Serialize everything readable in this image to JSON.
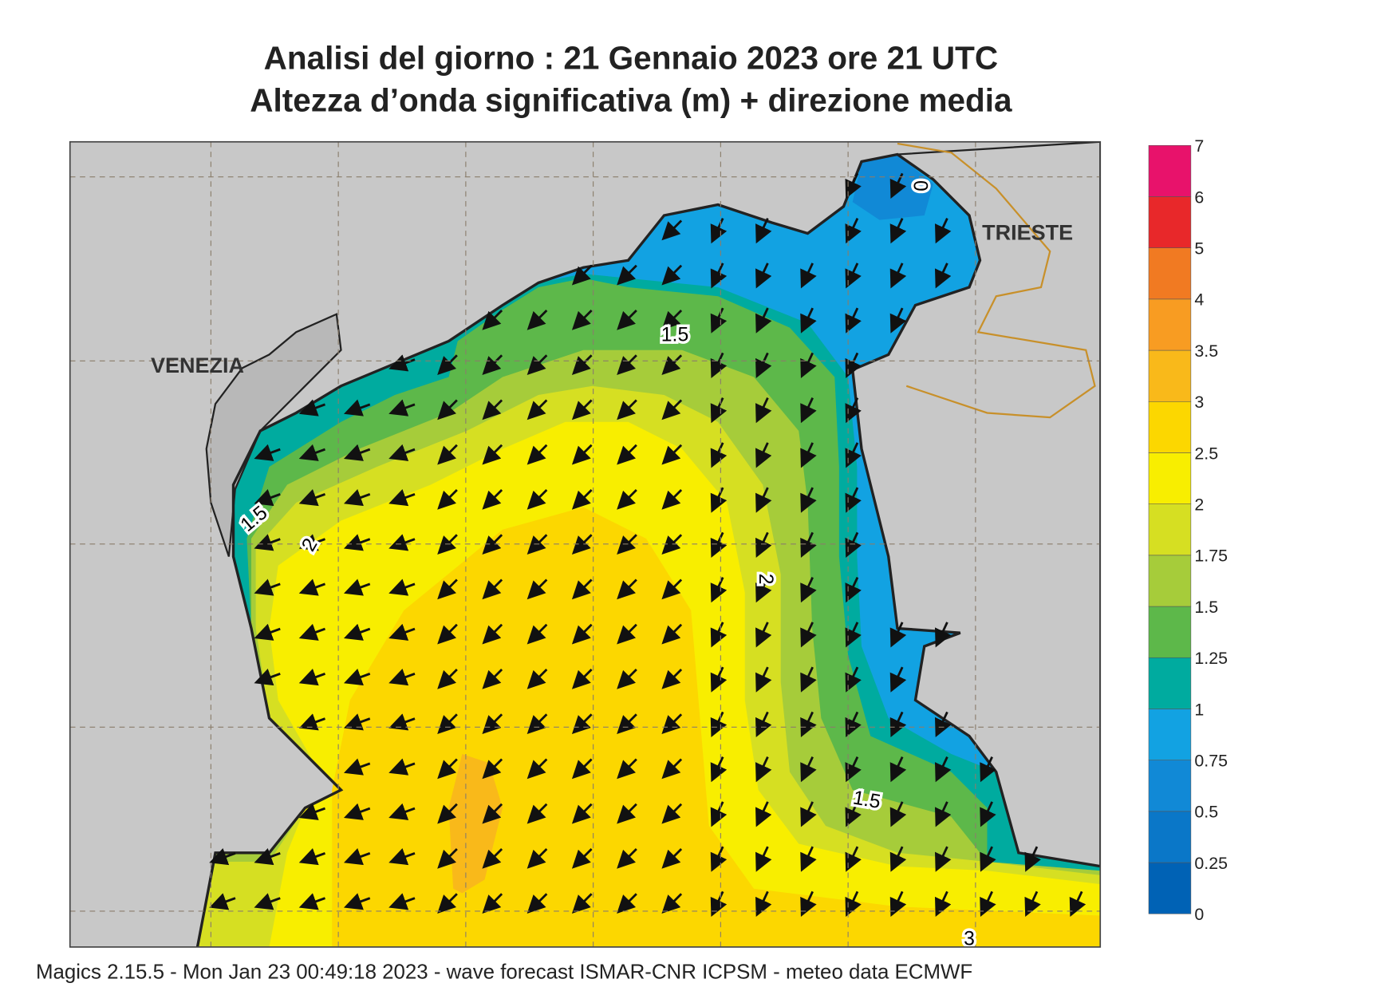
{
  "header": {
    "title_line1": "Analisi del giorno :  21  Gennaio  2023   ore 21 UTC",
    "title_line2": "Altezza d’onda significativa (m) + direzione media"
  },
  "legend": {
    "levels": [
      0,
      0.25,
      0.5,
      0.75,
      1,
      1.25,
      1.5,
      1.75,
      2,
      2.5,
      3,
      3.5,
      4,
      5,
      6,
      7
    ],
    "colors": [
      "#0062b5",
      "#0a77c8",
      "#1189d6",
      "#12a2e2",
      "#00ab9f",
      "#5db84a",
      "#a6cc3a",
      "#d6df22",
      "#f8ee00",
      "#fcd700",
      "#f9b91a",
      "#f89c22",
      "#f17a22",
      "#e8282a",
      "#e8126b"
    ]
  },
  "places": [
    "VENEZIA",
    "TRIESTE"
  ],
  "contour_labels": [
    "1.5",
    "1.5",
    "2",
    "2",
    "1.5",
    "3",
    "0"
  ],
  "footer": "Magics 2.15.5 - Mon Jan 23 00:49:18 2023 - wave forecast  ISMAR-CNR  ICPSM - meteo data    ECMWF"
}
